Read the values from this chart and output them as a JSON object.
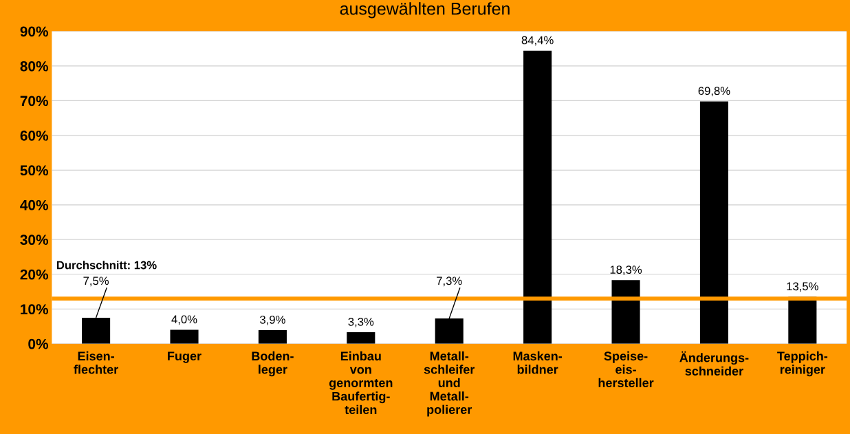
{
  "chart_data": {
    "type": "bar",
    "title": "ausgewählten Berufen",
    "categories": [
      "Eisen-\nflechter",
      "Fuger",
      "Boden-\nleger",
      "Einbau\nvon\ngenormten\nBaufertig-\nteilen",
      "Metall-\nschleifer\nund\nMetall-\npolierer",
      "Masken-\nbildner",
      "Speise-\neis-\nhersteller",
      "Änderungs-\nschneider",
      "Teppich-\nreiniger"
    ],
    "values": [
      7.5,
      4.0,
      3.9,
      3.3,
      7.3,
      84.4,
      18.3,
      69.8,
      13.5
    ],
    "value_labels": [
      "7,5%",
      "4,0%",
      "3,9%",
      "3,3%",
      "7,3%",
      "84,4%",
      "18,3%",
      "69,8%",
      "13,5%"
    ],
    "color": "#000000",
    "ylim": [
      0,
      90
    ],
    "yticks": [
      {
        "value": 0,
        "label": "0%"
      },
      {
        "value": 10,
        "label": "10%"
      },
      {
        "value": 20,
        "label": "20%"
      },
      {
        "value": 30,
        "label": "30%"
      },
      {
        "value": 40,
        "label": "40%"
      },
      {
        "value": 50,
        "label": "50%"
      },
      {
        "value": 60,
        "label": "60%"
      },
      {
        "value": 70,
        "label": "70%"
      },
      {
        "value": 80,
        "label": "80%"
      },
      {
        "value": 90,
        "label": "90%"
      }
    ],
    "grid": "y",
    "ref_lines": [
      {
        "axis": "y",
        "value": 13,
        "label": "Durchschnitt: 13%",
        "color": "#ff9900"
      }
    ]
  }
}
